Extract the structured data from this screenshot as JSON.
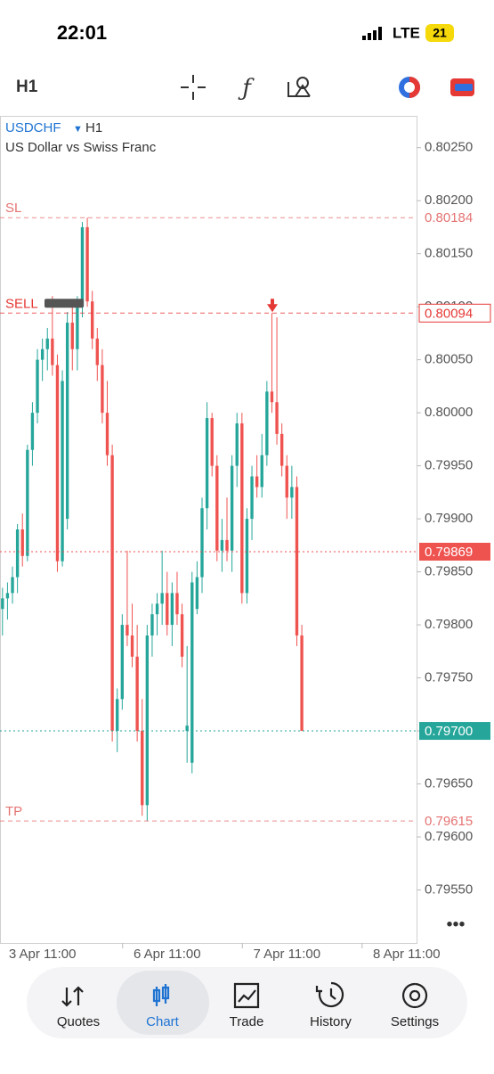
{
  "status_bar": {
    "time": "22:01",
    "network": "LTE",
    "battery": "21"
  },
  "toolbar": {
    "timeframe": "H1"
  },
  "chart_data": {
    "type": "candlestick",
    "title": "USDCHF",
    "timeframe": "H1",
    "subtitle": "US Dollar vs Swiss Franc",
    "up_color": "#26a69a",
    "down_color": "#ef5350",
    "open": [
      0.79815,
      0.79825,
      0.7983,
      0.79845,
      0.7989,
      0.79865,
      0.79965,
      0.8,
      0.8005,
      0.8006,
      0.8007,
      0.80045,
      0.7986,
      0.799,
      0.80085,
      0.8006,
      0.801,
      0.80175,
      0.80105,
      0.8007,
      0.80045,
      0.8,
      0.7996,
      0.797,
      0.7973,
      0.798,
      0.7979,
      0.7977,
      0.797,
      0.7963,
      0.7979,
      0.7981,
      0.7982,
      0.7983,
      0.798,
      0.7983,
      0.7981,
      0.797,
      0.7967,
      0.79815,
      0.79845,
      0.7991,
      0.79995,
      0.7995,
      0.7987,
      0.7988,
      0.7987,
      0.7995,
      0.7999,
      0.7983,
      0.799,
      0.7994,
      0.7993,
      0.7996,
      0.8002,
      0.8001,
      0.7998,
      0.7995,
      0.7992,
      0.7993,
      0.7979
    ],
    "high": [
      0.79835,
      0.7984,
      0.79855,
      0.79895,
      0.79905,
      0.7997,
      0.8001,
      0.8006,
      0.8007,
      0.8008,
      0.8011,
      0.80055,
      0.8004,
      0.80095,
      0.801,
      0.8011,
      0.8018,
      0.80184,
      0.80115,
      0.8008,
      0.8006,
      0.8003,
      0.7997,
      0.7974,
      0.7981,
      0.7987,
      0.7982,
      0.798,
      0.7973,
      0.798,
      0.7982,
      0.7983,
      0.7987,
      0.7985,
      0.7984,
      0.7985,
      0.7982,
      0.7978,
      0.7985,
      0.7986,
      0.7992,
      0.8001,
      0.8,
      0.7996,
      0.799,
      0.7992,
      0.7996,
      0.8,
      0.8,
      0.7991,
      0.7995,
      0.7996,
      0.7998,
      0.8003,
      0.80094,
      0.8009,
      0.7999,
      0.7996,
      0.7995,
      0.7994,
      0.798
    ],
    "low": [
      0.7979,
      0.79805,
      0.7982,
      0.7983,
      0.79855,
      0.7986,
      0.7995,
      0.7999,
      0.8003,
      0.8004,
      0.80035,
      0.7985,
      0.79855,
      0.7989,
      0.8004,
      0.8004,
      0.8009,
      0.801,
      0.8006,
      0.8003,
      0.7999,
      0.7995,
      0.7969,
      0.7968,
      0.7972,
      0.7978,
      0.7976,
      0.7969,
      0.7962,
      0.79615,
      0.7977,
      0.7979,
      0.798,
      0.7979,
      0.7978,
      0.798,
      0.7976,
      0.7967,
      0.7966,
      0.7981,
      0.7983,
      0.7989,
      0.7994,
      0.7986,
      0.7985,
      0.7986,
      0.7985,
      0.7993,
      0.7982,
      0.7982,
      0.7988,
      0.7992,
      0.7992,
      0.7995,
      0.8,
      0.7997,
      0.7994,
      0.799,
      0.799,
      0.7978,
      0.797
    ],
    "close": [
      0.79825,
      0.7983,
      0.79845,
      0.7989,
      0.79865,
      0.79965,
      0.8,
      0.8005,
      0.8006,
      0.8007,
      0.80045,
      0.7986,
      0.8003,
      0.80085,
      0.8006,
      0.801,
      0.80175,
      0.80105,
      0.8007,
      0.80045,
      0.8,
      0.7996,
      0.797,
      0.7973,
      0.798,
      0.7979,
      0.7977,
      0.797,
      0.7963,
      0.7979,
      0.7981,
      0.7982,
      0.7983,
      0.798,
      0.7983,
      0.7981,
      0.7977,
      0.79705,
      0.7984,
      0.79845,
      0.7991,
      0.79995,
      0.7995,
      0.7987,
      0.7988,
      0.7987,
      0.7995,
      0.7999,
      0.7983,
      0.799,
      0.7994,
      0.7993,
      0.7996,
      0.8002,
      0.8001,
      0.7998,
      0.7995,
      0.7992,
      0.7993,
      0.7979,
      0.797
    ],
    "xlim": [
      -0.5,
      83
    ],
    "xticks": [
      {
        "value": 8,
        "label": "3 Apr 11:00"
      },
      {
        "value": 33,
        "label": "6 Apr 11:00"
      },
      {
        "value": 57,
        "label": "7 Apr 11:00"
      },
      {
        "value": 81,
        "label": "8 Apr 11:00"
      }
    ],
    "ylim": [
      0.795,
      0.8028
    ],
    "yticks": [
      {
        "value": 0.8025,
        "label": "0.80250"
      },
      {
        "value": 0.802,
        "label": "0.80200"
      },
      {
        "value": 0.8015,
        "label": "0.80150"
      },
      {
        "value": 0.801,
        "label": "0.80100"
      },
      {
        "value": 0.8005,
        "label": "0.80050"
      },
      {
        "value": 0.8,
        "label": "0.80000"
      },
      {
        "value": 0.7995,
        "label": "0.79950"
      },
      {
        "value": 0.799,
        "label": "0.79900"
      },
      {
        "value": 0.7985,
        "label": "0.79850"
      },
      {
        "value": 0.798,
        "label": "0.79800"
      },
      {
        "value": 0.7975,
        "label": "0.79750"
      },
      {
        "value": 0.797,
        "label": "0.79700"
      },
      {
        "value": 0.7965,
        "label": "0.79650"
      },
      {
        "value": 0.796,
        "label": "0.79600"
      },
      {
        "value": 0.7955,
        "label": "0.79550"
      }
    ],
    "levels": [
      {
        "name": "SL",
        "value": 0.80184,
        "label": "0.80184",
        "style": "dashed",
        "color": "#e57373"
      },
      {
        "name": "SELL",
        "value": 0.80094,
        "label": "0.80094",
        "style": "boxed",
        "color": "#e53935"
      },
      {
        "value": 0.79869,
        "label": "0.79869",
        "style": "filled",
        "color": "#ef5350"
      },
      {
        "value": 0.797,
        "label": "0.79700",
        "style": "filled",
        "color": "#26a69a"
      },
      {
        "name": "TP",
        "value": 0.79615,
        "label": "0.79615",
        "style": "dashed",
        "color": "#e57373"
      }
    ]
  },
  "nav": [
    {
      "label": "Quotes"
    },
    {
      "label": "Chart",
      "active": true
    },
    {
      "label": "Trade"
    },
    {
      "label": "History"
    },
    {
      "label": "Settings"
    }
  ]
}
